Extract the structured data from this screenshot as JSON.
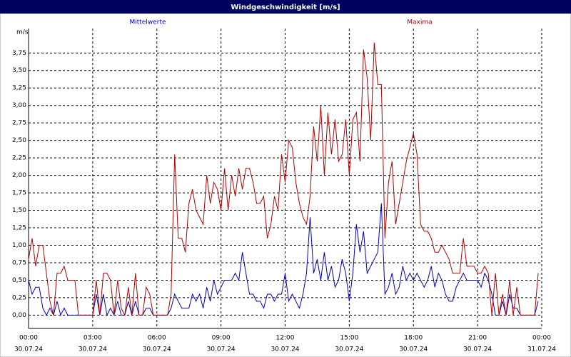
{
  "chart_data": {
    "type": "line",
    "title": "Windgeschwindigkeit [m/s]",
    "y_unit": "m/s",
    "xlim": [
      0,
      1440
    ],
    "ylim": [
      -0.19,
      4.1
    ],
    "grid": true,
    "xticks": [
      {
        "value": 0,
        "label": "00:00"
      },
      {
        "value": 180,
        "label": "03:00"
      },
      {
        "value": 360,
        "label": "06:00"
      },
      {
        "value": 540,
        "label": "09:00"
      },
      {
        "value": 720,
        "label": "12:00"
      },
      {
        "value": 900,
        "label": "15:00"
      },
      {
        "value": 1080,
        "label": "18:00"
      },
      {
        "value": 1260,
        "label": "21:00"
      },
      {
        "value": 1440,
        "label": "00:00"
      }
    ],
    "xtick_dates": [
      "30.07.24",
      "30.07.24",
      "30.07.24",
      "30.07.24",
      "30.07.24",
      "30.07.24",
      "30.07.24",
      "30.07.24",
      "31.07.24"
    ],
    "yticks": [
      {
        "value": 0,
        "label": "0,00"
      },
      {
        "value": 0.25,
        "label": "0,25"
      },
      {
        "value": 0.5,
        "label": "0,50"
      },
      {
        "value": 0.75,
        "label": "0,75"
      },
      {
        "value": 1,
        "label": "1,00"
      },
      {
        "value": 1.25,
        "label": "1,25"
      },
      {
        "value": 1.5,
        "label": "1,50"
      },
      {
        "value": 1.75,
        "label": "1,75"
      },
      {
        "value": 2,
        "label": "2,00"
      },
      {
        "value": 2.25,
        "label": "2,25"
      },
      {
        "value": 2.5,
        "label": "2,50"
      },
      {
        "value": 2.75,
        "label": "2,75"
      },
      {
        "value": 3,
        "label": "3,00"
      },
      {
        "value": 3.25,
        "label": "3,25"
      },
      {
        "value": 3.5,
        "label": "3,50"
      },
      {
        "value": 3.75,
        "label": "3,75"
      }
    ],
    "x": [
      0,
      10,
      20,
      30,
      40,
      50,
      60,
      70,
      80,
      90,
      100,
      110,
      120,
      130,
      140,
      150,
      160,
      170,
      180,
      190,
      200,
      210,
      220,
      230,
      240,
      250,
      260,
      270,
      280,
      290,
      300,
      310,
      320,
      330,
      340,
      350,
      360,
      370,
      380,
      390,
      400,
      410,
      420,
      430,
      440,
      450,
      460,
      470,
      480,
      490,
      500,
      510,
      520,
      530,
      540,
      550,
      560,
      570,
      580,
      590,
      600,
      610,
      620,
      630,
      640,
      650,
      660,
      670,
      680,
      690,
      700,
      710,
      720,
      730,
      740,
      750,
      760,
      770,
      780,
      790,
      800,
      810,
      820,
      830,
      840,
      850,
      860,
      870,
      880,
      890,
      900,
      910,
      920,
      930,
      940,
      950,
      960,
      970,
      980,
      990,
      1000,
      1010,
      1020,
      1030,
      1040,
      1050,
      1060,
      1070,
      1080,
      1090,
      1100,
      1110,
      1120,
      1130,
      1140,
      1150,
      1160,
      1170,
      1180,
      1190,
      1200,
      1210,
      1220,
      1230,
      1240,
      1250,
      1260,
      1270,
      1280,
      1290,
      1300,
      1310,
      1320,
      1330,
      1340,
      1350,
      1360,
      1370,
      1380,
      1390,
      1400,
      1410,
      1420,
      1430
    ],
    "series": [
      {
        "name": "Mittelwerte",
        "color": "#0000c0",
        "values": [
          0.5,
          0.3,
          0.4,
          0.4,
          0.1,
          0.0,
          0.1,
          0.0,
          0.2,
          0.0,
          0.1,
          0.0,
          0,
          0,
          0,
          0,
          0,
          0,
          0.0,
          0.3,
          0.0,
          0.3,
          0.0,
          0.1,
          0.0,
          0.2,
          0.0,
          0.0,
          0.2,
          0.0,
          0.2,
          0.0,
          0.0,
          0.1,
          0.1,
          0.0,
          0,
          0,
          0,
          0,
          0.1,
          0.3,
          0.2,
          0.1,
          0.1,
          0.1,
          0.3,
          0.2,
          0.3,
          0.1,
          0.4,
          0.2,
          0.5,
          0.3,
          0.4,
          0.5,
          0.5,
          0.5,
          0.6,
          0.5,
          0.9,
          0.6,
          0.3,
          0.3,
          0.2,
          0.2,
          0.1,
          0.3,
          0.3,
          0.2,
          0.3,
          0.3,
          0.6,
          0.2,
          0.3,
          0.2,
          0.1,
          0.3,
          0.6,
          1.4,
          0.6,
          0.8,
          0.5,
          0.9,
          0.5,
          0.7,
          0.4,
          0.5,
          0.8,
          0.6,
          0.2,
          0.6,
          1.3,
          0.9,
          1.2,
          0.6,
          0.7,
          0.8,
          0.9,
          1.6,
          0.3,
          0.4,
          0.6,
          0.3,
          0.4,
          0.7,
          0.5,
          0.6,
          0.5,
          0.6,
          0.5,
          0.4,
          0.5,
          0.7,
          0.4,
          0.6,
          0.5,
          0.3,
          0.2,
          0.2,
          0.4,
          0.5,
          0.6,
          0.5,
          0.5,
          0.5,
          0.5,
          0.4,
          0.6,
          0.5,
          0.3,
          0.0,
          0.0,
          0.2,
          0.0,
          0.3,
          0.1,
          0.1,
          0.0,
          0.0,
          0.0,
          0.0,
          0.0,
          0.2
        ]
      },
      {
        "name": "Maxima",
        "color": "#b00000",
        "values": [
          0.8,
          1.1,
          0.7,
          1.0,
          1.0,
          0.6,
          0.2,
          0.0,
          0.6,
          0.6,
          0.7,
          0.5,
          0.5,
          0.5,
          0.0,
          0.0,
          0.0,
          0.0,
          0.0,
          0.5,
          0.0,
          0.6,
          0.6,
          0.5,
          0.0,
          0.5,
          0.1,
          0.0,
          0.4,
          0.0,
          0.6,
          0.0,
          0.0,
          0.4,
          0.3,
          0.0,
          0.0,
          0.0,
          0.0,
          0.0,
          0.3,
          2.3,
          1.1,
          1.1,
          0.9,
          1.6,
          1.8,
          1.5,
          1.4,
          1.3,
          2.0,
          1.6,
          1.9,
          1.8,
          1.5,
          2.1,
          1.5,
          2.0,
          1.7,
          2.1,
          1.8,
          2.1,
          2.1,
          1.9,
          1.6,
          1.6,
          1.7,
          1.1,
          1.3,
          1.7,
          1.5,
          2.3,
          1.9,
          2.5,
          2.4,
          1.9,
          1.6,
          1.4,
          1.3,
          1.7,
          2.7,
          2.2,
          3.0,
          2.0,
          2.9,
          2.3,
          2.8,
          2.2,
          2.3,
          2.8,
          2.0,
          2.8,
          2.9,
          2.2,
          3.8,
          3.4,
          2.5,
          3.9,
          3.3,
          3.3,
          1.1,
          1.9,
          2.2,
          1.3,
          1.6,
          1.9,
          2.2,
          2.4,
          2.6,
          2.3,
          1.3,
          1.2,
          1.2,
          1.1,
          0.9,
          0.9,
          1.0,
          0.9,
          0.8,
          0.6,
          0.6,
          0.6,
          1.1,
          0.7,
          0.7,
          0.7,
          0.6,
          0.6,
          0.7,
          0.6,
          0.0,
          0.6,
          0.0,
          0.3,
          0.0,
          0.5,
          0.0,
          0.4,
          0.0,
          0.0,
          0.0,
          0.0,
          0.0,
          0.6
        ]
      }
    ]
  }
}
